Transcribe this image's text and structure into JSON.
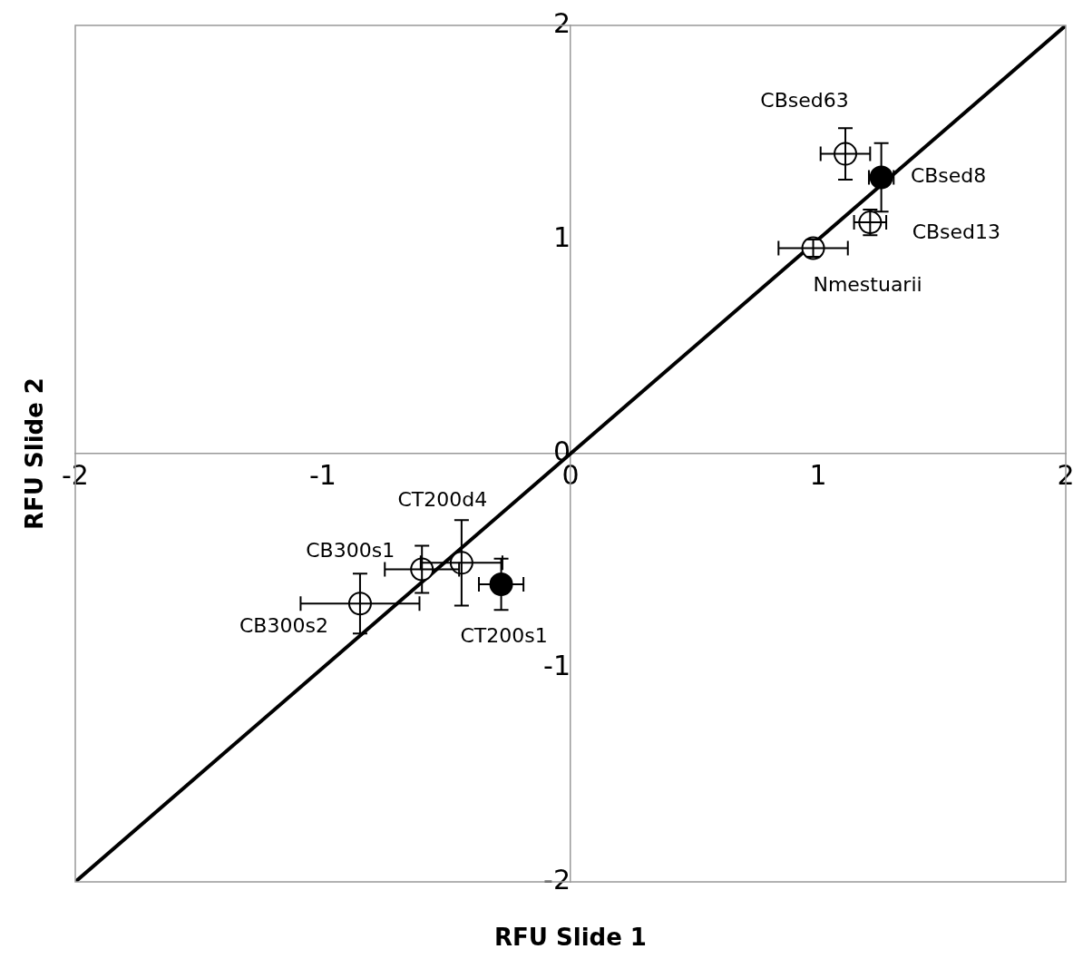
{
  "chart_data": {
    "type": "scatter",
    "xlabel": "RFU Slide 1",
    "ylabel": "RFU Slide 2",
    "xlim": [
      -2,
      2
    ],
    "ylim": [
      -2,
      2
    ],
    "xticks": [
      -2,
      -1,
      0,
      1,
      2
    ],
    "yticks": [
      -2,
      -1,
      0,
      1,
      2
    ],
    "grid": false,
    "legend": false,
    "marker": "circle",
    "series": [
      {
        "color": "#ffffff",
        "x": [
          1.11,
          1.21,
          0.98,
          -0.44,
          -0.6,
          -0.85
        ],
        "values": [
          1.4,
          1.08,
          0.96,
          -0.51,
          -0.54,
          -0.7
        ],
        "errors": [
          0.12,
          0.06,
          0.04,
          0.2,
          0.11,
          0.14
        ],
        "xerrors": [
          0.1,
          0.065,
          0.14,
          0.165,
          0.15,
          0.24
        ]
      },
      {
        "color": "#000000",
        "x": [
          1.255,
          -0.28
        ],
        "values": [
          1.29,
          -0.61
        ],
        "errors": [
          0.16,
          0.12
        ],
        "xerrors": [
          0.05,
          0.09
        ]
      },
      {
        "type": "line",
        "marker": "none",
        "color": "#000000",
        "x": [
          -2,
          2
        ],
        "values": [
          -2,
          2
        ]
      }
    ],
    "annotations": [
      {
        "text": "CBsed63",
        "x": 1.11,
        "y": 1.4
      },
      {
        "text": "CBsed8",
        "x": 1.255,
        "y": 1.29
      },
      {
        "text": "CBsed13",
        "x": 1.21,
        "y": 1.08
      },
      {
        "text": "Nmestuarii",
        "x": 0.98,
        "y": 0.96
      },
      {
        "text": "CT200d4",
        "x": -0.44,
        "y": -0.51
      },
      {
        "text": "CB300s1",
        "x": -0.6,
        "y": -0.54
      },
      {
        "text": "CB300s2",
        "x": -0.85,
        "y": -0.7
      },
      {
        "text": "CT200s1",
        "x": -0.28,
        "y": -0.61
      }
    ]
  }
}
